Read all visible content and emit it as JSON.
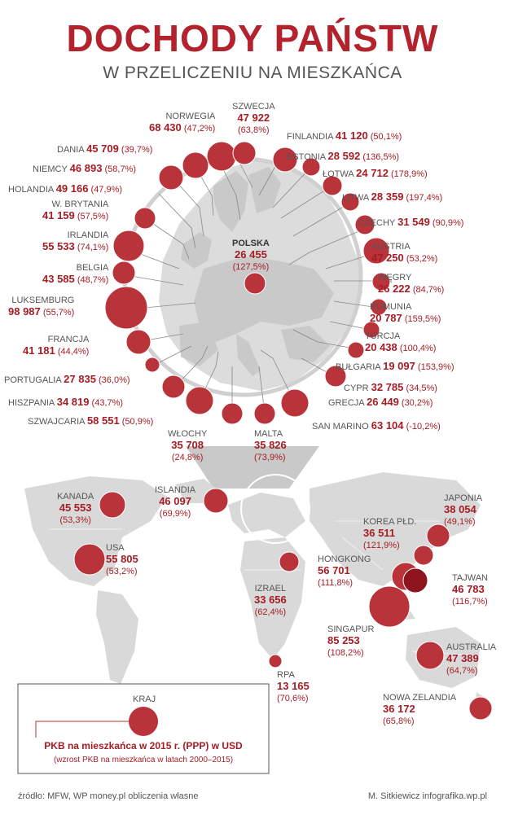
{
  "header": {
    "title": "DOCHODY PAŃSTW",
    "subtitle": "W PRZELICZENIU NA MIESZKAŃCA"
  },
  "colors": {
    "accent": "#b3232d",
    "circle": "#b8333a",
    "map": "#d9d9d9",
    "map_dark": "#c6c6c6"
  },
  "countries": [
    {
      "name": "NORWEGIA",
      "value": "68 430",
      "growth": "(47,2%)"
    },
    {
      "name": "SZWECJA",
      "value": "47 922",
      "growth": "(63,8%)"
    },
    {
      "name": "FINLANDIA",
      "value": "41 120",
      "growth": "(50,1%)"
    },
    {
      "name": "ESTONIA",
      "value": "28 592",
      "growth": "(136,5%)"
    },
    {
      "name": "ŁOTWA",
      "value": "24 712",
      "growth": "(178,9%)"
    },
    {
      "name": "LITWA",
      "value": "28 359",
      "growth": "(197,4%)"
    },
    {
      "name": "CZECHY",
      "value": "31 549",
      "growth": "(90,9%)"
    },
    {
      "name": "AUSTRIA",
      "value": "47 250",
      "growth": "(53,2%)"
    },
    {
      "name": "WĘGRY",
      "value": "26 222",
      "growth": "(84,7%)"
    },
    {
      "name": "RUMUNIA",
      "value": "20 787",
      "growth": "(159,5%)"
    },
    {
      "name": "TURCJA",
      "value": "20 438",
      "growth": "(100,4%)"
    },
    {
      "name": "BUŁGARIA",
      "value": "19 097",
      "growth": "(153,9%)"
    },
    {
      "name": "CYPR",
      "value": "32 785",
      "growth": "(34,5%)"
    },
    {
      "name": "GRECJA",
      "value": "26 449",
      "growth": "(30,2%)"
    },
    {
      "name": "SAN MARINO",
      "value": "63 104",
      "growth": "(-10,2%)"
    },
    {
      "name": "MALTA",
      "value": "35 826",
      "growth": "(73,9%)"
    },
    {
      "name": "WŁOCHY",
      "value": "35 708",
      "growth": "(24,8%)"
    },
    {
      "name": "SZWAJCARIA",
      "value": "58 551",
      "growth": "(50,9%)"
    },
    {
      "name": "HISZPANIA",
      "value": "34 819",
      "growth": "(43,7%)"
    },
    {
      "name": "PORTUGALIA",
      "value": "27 835",
      "growth": "(36,0%)"
    },
    {
      "name": "FRANCJA",
      "value": "41 181",
      "growth": "(44,4%)"
    },
    {
      "name": "LUKSEMBURG",
      "value": "98 987",
      "growth": "(55,7%)"
    },
    {
      "name": "BELGIA",
      "value": "43 585",
      "growth": "(48,7%)"
    },
    {
      "name": "IRLANDIA",
      "value": "55 533",
      "growth": "(74,1%)"
    },
    {
      "name": "W. BRYTANIA",
      "value": "41 159",
      "growth": "(57,5%)"
    },
    {
      "name": "HOLANDIA",
      "value": "49 166",
      "growth": "(47,9%)"
    },
    {
      "name": "NIEMCY",
      "value": "46 893",
      "growth": "(58,7%)"
    },
    {
      "name": "DANIA",
      "value": "45 709",
      "growth": "(39,7%)"
    },
    {
      "name": "POLSKA",
      "value": "26 455",
      "growth": "(127,5%)"
    },
    {
      "name": "KANADA",
      "value": "45 553",
      "growth": "(53,3%)"
    },
    {
      "name": "USA",
      "value": "55 805",
      "growth": "(53,2%)"
    },
    {
      "name": "ISLANDIA",
      "value": "46 097",
      "growth": "(69,9%)"
    },
    {
      "name": "IZRAEL",
      "value": "33 656",
      "growth": "(62,4%)"
    },
    {
      "name": "RPA",
      "value": "13 165",
      "growth": "(70,6%)"
    },
    {
      "name": "JAPONIA",
      "value": "38 054",
      "growth": "(49,1%)"
    },
    {
      "name": "KOREA PŁD.",
      "value": "36 511",
      "growth": "(121,9%)"
    },
    {
      "name": "HONGKONG",
      "value": "56 701",
      "growth": "(111,8%)"
    },
    {
      "name": "TAJWAN",
      "value": "46 783",
      "growth": "(116,7%)"
    },
    {
      "name": "SINGAPUR",
      "value": "85 253",
      "growth": "(108,2%)"
    },
    {
      "name": "AUSTRALIA",
      "value": "47 389",
      "growth": "(64,7%)"
    },
    {
      "name": "NOWA ZELANDIA",
      "value": "36 172",
      "growth": "(65,8%)"
    }
  ],
  "legend": {
    "kraj": "KRAJ",
    "main": "PKB na mieszkańca w 2015 r. (PPP) w USD",
    "sub": "(wzrost PKB na mieszkańca w latach 2000–2015)"
  },
  "footer": {
    "source": "źródło: MFW, WP money.pl obliczenia własne",
    "author": "M. Sitkiewicz infografika.wp.pl"
  }
}
